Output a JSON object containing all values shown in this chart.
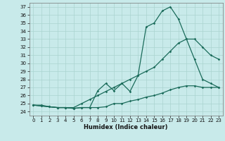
{
  "title": "",
  "xlabel": "Humidex (Indice chaleur)",
  "xlim": [
    -0.5,
    23.5
  ],
  "ylim": [
    23.5,
    37.5
  ],
  "yticks": [
    24,
    25,
    26,
    27,
    28,
    29,
    30,
    31,
    32,
    33,
    34,
    35,
    36,
    37
  ],
  "xticks": [
    0,
    1,
    2,
    3,
    4,
    5,
    6,
    7,
    8,
    9,
    10,
    11,
    12,
    13,
    14,
    15,
    16,
    17,
    18,
    19,
    20,
    21,
    22,
    23
  ],
  "background_color": "#c8eaea",
  "grid_color": "#aad4d0",
  "line_color": "#1a6b5a",
  "line1_y": [
    24.8,
    24.7,
    24.6,
    24.5,
    24.5,
    24.4,
    24.5,
    24.5,
    24.5,
    24.6,
    25.0,
    25.0,
    25.3,
    25.5,
    25.8,
    26.0,
    26.3,
    26.7,
    27.0,
    27.2,
    27.2,
    27.0,
    27.0,
    27.0
  ],
  "line2_y": [
    24.8,
    24.8,
    24.6,
    24.5,
    24.5,
    24.5,
    25.0,
    25.5,
    26.0,
    26.5,
    27.0,
    27.5,
    28.0,
    28.5,
    29.0,
    29.5,
    30.5,
    31.5,
    32.5,
    33.0,
    33.0,
    32.0,
    31.0,
    30.5
  ],
  "line3_y": [
    24.8,
    24.7,
    24.6,
    24.5,
    24.5,
    24.4,
    24.5,
    24.5,
    26.6,
    27.5,
    26.6,
    27.5,
    26.5,
    28.5,
    34.5,
    35.0,
    36.5,
    37.0,
    35.5,
    33.0,
    30.5,
    28.0,
    27.5,
    27.0
  ]
}
